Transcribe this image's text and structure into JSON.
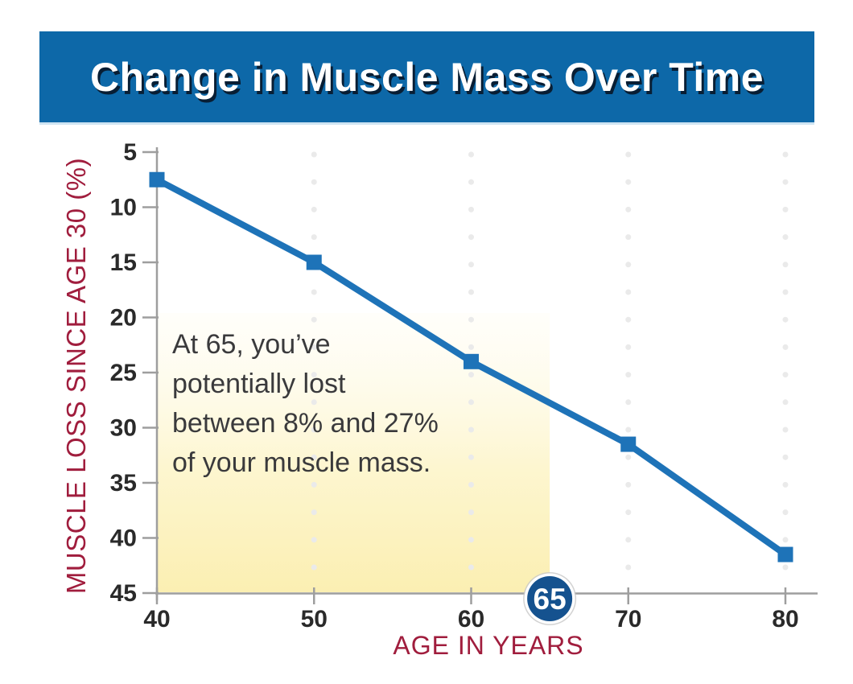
{
  "header": {
    "title": "Change in Muscle Mass Over Time",
    "bg_color": "#0d68a8",
    "text_color": "#ffffff"
  },
  "chart_data": {
    "type": "line",
    "title": "Change in Muscle Mass Over Time",
    "xlabel": "AGE IN YEARS",
    "ylabel": "MUSCLE LOSS SINCE AGE 30 (%)",
    "x": [
      40,
      50,
      60,
      70,
      80
    ],
    "values": [
      7.5,
      15,
      24,
      31.5,
      41.5
    ],
    "xticks": [
      "40",
      "50",
      "60",
      "70",
      "80"
    ],
    "yticks": [
      "5",
      "10",
      "15",
      "20",
      "25",
      "30",
      "35",
      "40",
      "45"
    ],
    "xlim": [
      40,
      80
    ],
    "ylim": [
      5,
      45
    ],
    "y_axis_inverted": true,
    "grid": "dotted vertical",
    "gridline_x": [
      50,
      60,
      70,
      80
    ],
    "legend": "none",
    "colors": {
      "line": "#1e73b8",
      "grid_dot": "#eaeaea",
      "axis": "#9e9e9e",
      "tick_label": "#2a2a2a",
      "axis_title": "#a01d3d",
      "annotation_text": "#3a3a3c",
      "highlight_top": "#fffdf4",
      "highlight_bottom": "#fbefb2"
    },
    "marker": "square",
    "highlight_region": {
      "x_from": 40,
      "x_to": 65,
      "y_from": 19.6,
      "y_to": 45
    },
    "annotation": {
      "lines": [
        "At 65, you’ve",
        "potentially lost",
        "between 8% and 27%",
        "of your muscle mass."
      ]
    },
    "badge": {
      "label": "65",
      "x": 65,
      "fill": "#15528f",
      "ring_color": "#ffffff",
      "outer_ring_color": "#c8c8c8",
      "text_color": "#ffffff"
    }
  }
}
